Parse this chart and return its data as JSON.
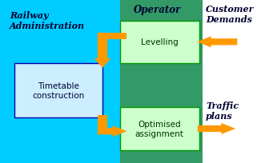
{
  "fig_width": 3.26,
  "fig_height": 2.05,
  "dpi": 100,
  "bg_left_color": "#00ccff",
  "bg_right_color": "#339966",
  "bg_white_color": "#ffffff",
  "box_timetable_color": "#cceeff",
  "box_timetable_border": "#0000aa",
  "box_levelling_color": "#ccffcc",
  "box_levelling_border": "#009900",
  "box_optimised_color": "#ccffcc",
  "box_optimised_border": "#009900",
  "arrow_color": "#ff9900",
  "text_railway": "Railway\nAdministration",
  "text_operator": "Operator",
  "text_customer": "Customer\nDemands",
  "text_traffic": "Traffic\nplans",
  "text_levelling": "Levelling",
  "text_timetable": "Timetable\nconstruction",
  "text_optimised": "Optimised\nassignment"
}
